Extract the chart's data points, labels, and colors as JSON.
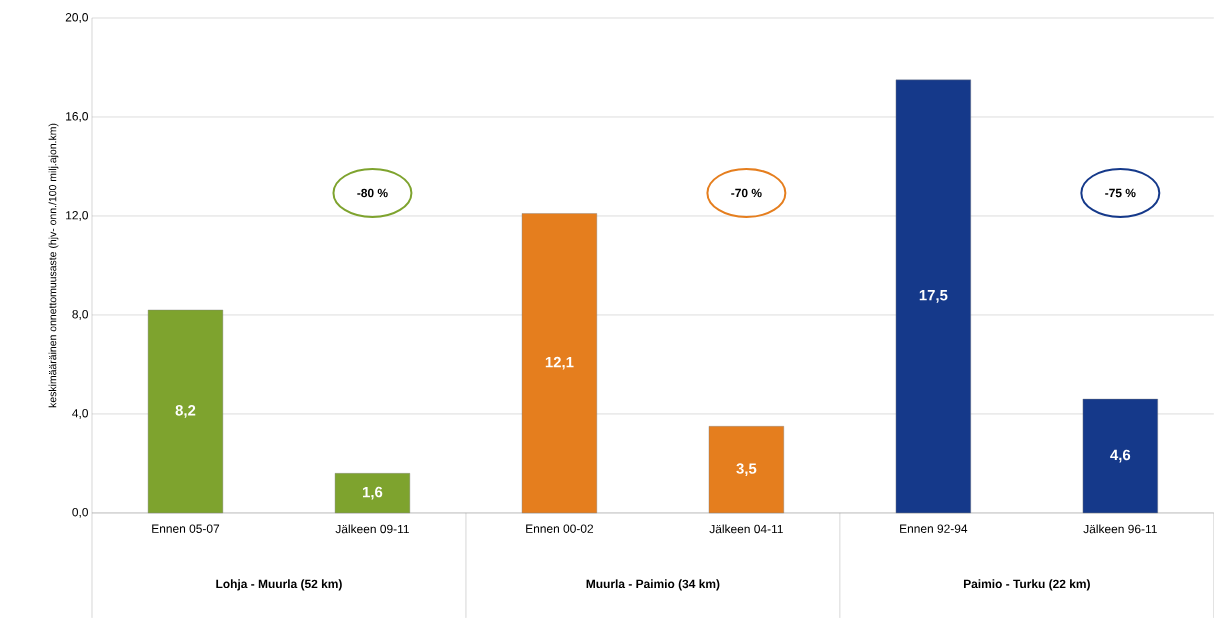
{
  "chart_data": {
    "type": "bar",
    "ylabel": "keskimääräinen onnettomuusaste (hjv- onn./100 milj.ajon.km)",
    "categories": [
      "Ennen 05-07",
      "Jälkeen 09-11",
      "Ennen 00-02",
      "Jälkeen 04-11",
      "Ennen 92-94",
      "Jälkeen 96-11"
    ],
    "values": [
      8.2,
      1.6,
      12.1,
      3.5,
      17.5,
      4.6
    ],
    "value_labels": [
      "8,2",
      "1,6",
      "12,1",
      "3,5",
      "17,5",
      "4,6"
    ],
    "colors": [
      "#7ea32e",
      "#7ea32e",
      "#e57e1e",
      "#e57e1e",
      "#15398a",
      "#15398a"
    ],
    "ylim": [
      0,
      20
    ],
    "yticks": [
      {
        "value": 0,
        "label": "0,0"
      },
      {
        "value": 4,
        "label": "4,0"
      },
      {
        "value": 8,
        "label": "8,0"
      },
      {
        "value": 12,
        "label": "12,0"
      },
      {
        "value": 16,
        "label": "16,0"
      },
      {
        "value": 20,
        "label": "20,0"
      }
    ],
    "grid": "y",
    "annotations": [
      "-80 %",
      "-70 %",
      "-75 %",
      "Lohja - Muurla (52 km)",
      "Muurla - Paimio (34 km)",
      "Paimio - Turku (22 km)"
    ]
  }
}
